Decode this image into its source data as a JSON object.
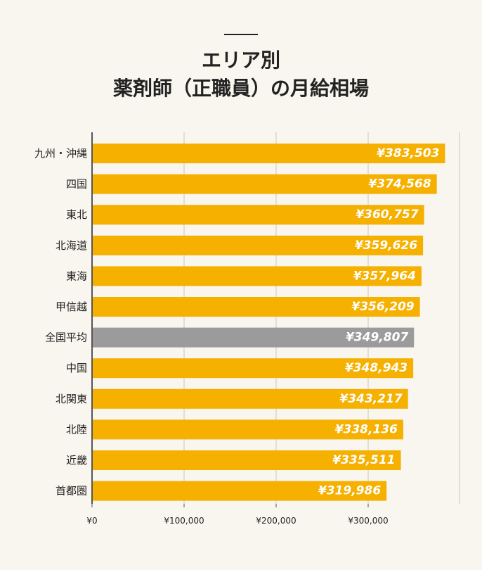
{
  "title_line1": "エリア別",
  "title_line2": "薬剤師（正職員）の月給相場",
  "chart_data": {
    "type": "bar",
    "orientation": "horizontal",
    "categories": [
      "九州・沖縄",
      "四国",
      "東北",
      "北海道",
      "東海",
      "甲信越",
      "全国平均",
      "中国",
      "北関東",
      "北陸",
      "近畿",
      "首都圏"
    ],
    "values": [
      383503,
      374568,
      360757,
      359626,
      357964,
      356209,
      349807,
      348943,
      343217,
      338136,
      335511,
      319986
    ],
    "data_labels": [
      "¥383,503",
      "¥374,568",
      "¥360,757",
      "¥359,626",
      "¥357,964",
      "¥356,209",
      "¥349,807",
      "¥348,943",
      "¥343,217",
      "¥338,136",
      "¥335,511",
      "¥319,986"
    ],
    "highlight_category": "全国平均",
    "xlim": [
      0,
      400000
    ],
    "x_ticks": [
      0,
      100000,
      200000,
      300000
    ],
    "x_tick_labels": [
      "¥0",
      "¥100,000",
      "¥200,000",
      "¥300,000"
    ],
    "grid": true,
    "colors": {
      "bar": "#f5b000",
      "highlight": "#9b9b9b",
      "grid": "#d9d6cf",
      "axis": "#555555",
      "label_text": "#ffffff"
    }
  }
}
